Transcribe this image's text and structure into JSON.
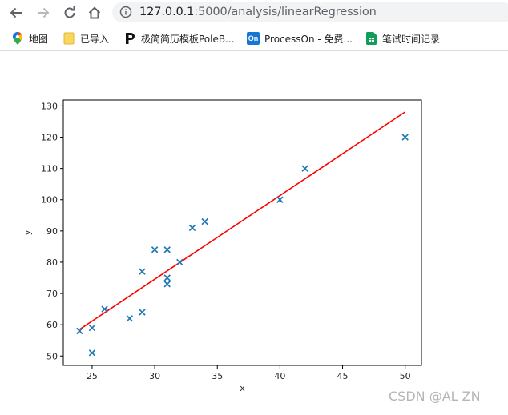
{
  "browser": {
    "url_host": "127.0.0.1",
    "url_rest": ":5000/analysis/linearRegression",
    "bookmarks": [
      {
        "label": "地图",
        "icon": "google-maps-icon"
      },
      {
        "label": "已导入",
        "icon": "folder-icon"
      },
      {
        "label": "极简简历模板PoleB...",
        "icon": "poleb-icon"
      },
      {
        "label": "ProcessOn - 免费...",
        "icon": "processon-icon",
        "badge": "On"
      },
      {
        "label": "笔试时间记录",
        "icon": "google-sheets-icon"
      }
    ]
  },
  "chart_data": {
    "type": "scatter",
    "xlabel": "x",
    "ylabel": "y",
    "xlim": [
      22.7,
      51.3
    ],
    "ylim": [
      47.0,
      131.9
    ],
    "xticks": [
      25,
      30,
      35,
      40,
      45,
      50
    ],
    "yticks": [
      50,
      60,
      70,
      80,
      90,
      100,
      110,
      120,
      130
    ],
    "points": [
      [
        24,
        58
      ],
      [
        25,
        59
      ],
      [
        25,
        51
      ],
      [
        26,
        65
      ],
      [
        28,
        62
      ],
      [
        29,
        77
      ],
      [
        29,
        64
      ],
      [
        30,
        84
      ],
      [
        31,
        84
      ],
      [
        31,
        75
      ],
      [
        31,
        73
      ],
      [
        32,
        80
      ],
      [
        33,
        91
      ],
      [
        34,
        93
      ],
      [
        40,
        100
      ],
      [
        42,
        110
      ],
      [
        50,
        120
      ]
    ],
    "marker_color": "#1f77b4",
    "fit_line": {
      "x": [
        24,
        50
      ],
      "y": [
        58.5,
        128.1
      ],
      "color": "#ff0000"
    },
    "grid": false
  },
  "watermark": "CSDN @AL  ZN"
}
